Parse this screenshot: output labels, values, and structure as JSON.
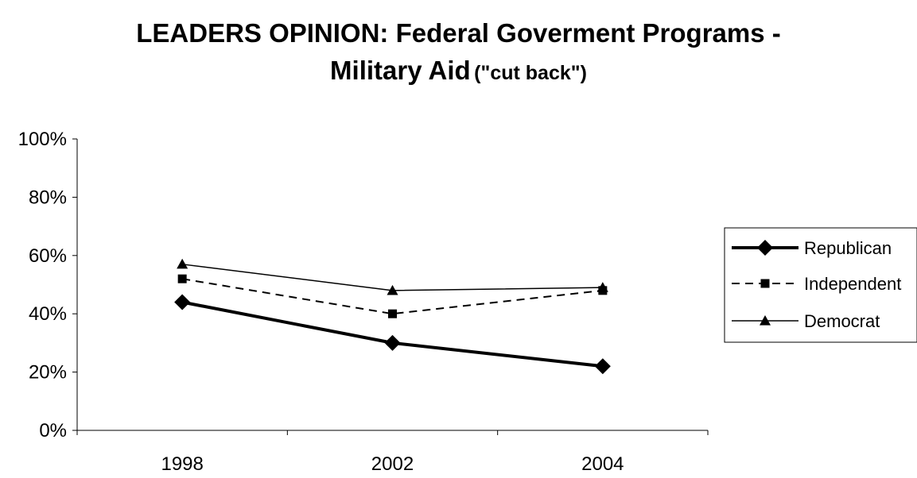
{
  "chart_data": {
    "type": "line",
    "title_line1": "LEADERS OPINION: Federal Goverment Programs -",
    "title_line2": "Military Aid",
    "title_suffix": "(\"cut back\")",
    "xlabel": "",
    "ylabel": "",
    "categories": [
      "1998",
      "2002",
      "2004"
    ],
    "ylim": [
      0,
      100
    ],
    "yticks": [
      0,
      20,
      40,
      60,
      80,
      100
    ],
    "ytick_labels": [
      "0%",
      "20%",
      "40%",
      "60%",
      "80%",
      "100%"
    ],
    "grid": false,
    "legend_position": "right",
    "series": [
      {
        "name": "Republican",
        "values": [
          44,
          30,
          22
        ],
        "marker": "diamond",
        "line": "solid-thick",
        "color": "#000000"
      },
      {
        "name": "Independent",
        "values": [
          52,
          40,
          48
        ],
        "marker": "square",
        "line": "dashed",
        "color": "#000000"
      },
      {
        "name": "Democrat",
        "values": [
          57,
          48,
          49
        ],
        "marker": "triangle",
        "line": "solid-thin",
        "color": "#000000"
      }
    ]
  }
}
